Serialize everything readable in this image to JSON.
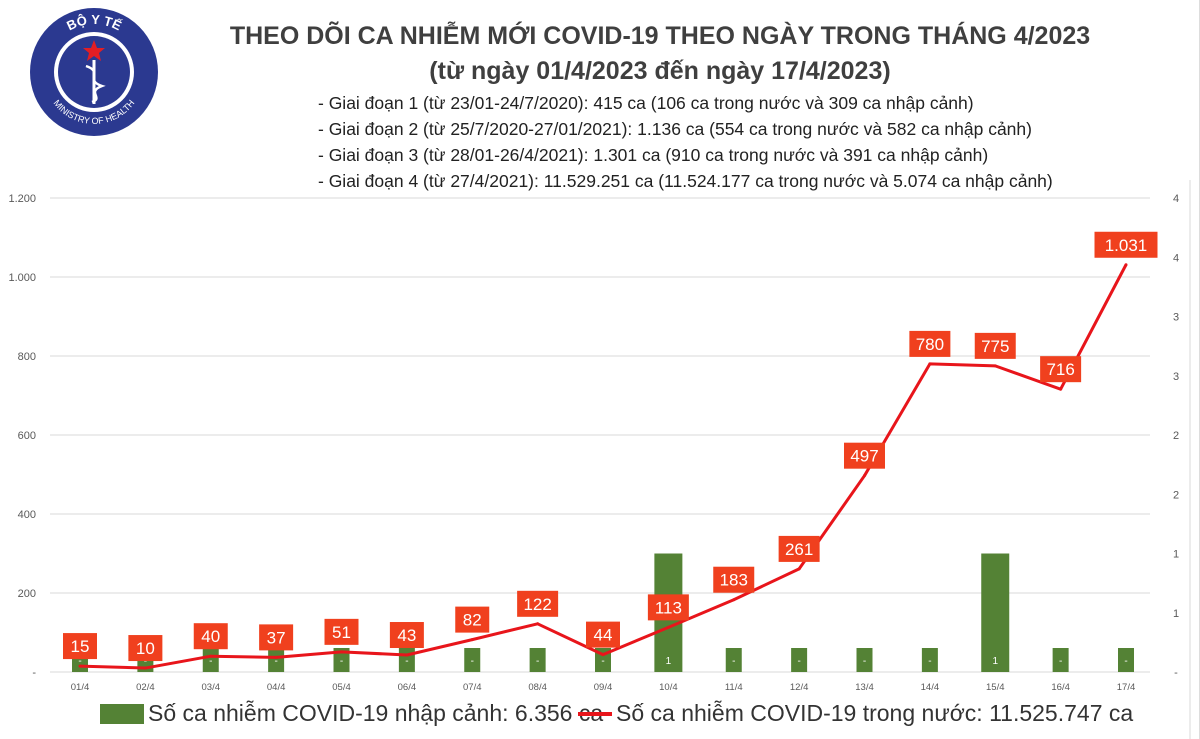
{
  "logo": {
    "top_text": "BỘ Y TẾ",
    "bottom_text": "MINISTRY OF HEALTH",
    "colors": {
      "blue": "#2b3990",
      "star": "#e31e24"
    }
  },
  "title": "THEO DÕI CA NHIỄM MỚI COVID-19 THEO NGÀY TRONG THÁNG 4/2023",
  "subtitle": "(từ ngày 01/4/2023 đến ngày 17/4/2023)",
  "stages": [
    "- Giai đoạn 1 (từ 23/01-24/7/2020): 415 ca (106 ca trong nước và 309 ca nhập cảnh)",
    "- Giai đoạn 2 (từ 25/7/2020-27/01/2021): 1.136 ca (554 ca trong nước và 582 ca nhập cảnh)",
    "- Giai đoạn 3 (từ 28/01-26/4/2021): 1.301 ca (910 ca trong nước và 391 ca nhập cảnh)",
    "- Giai đoạn 4 (từ 27/4/2021): 11.529.251 ca (11.524.177 ca trong nước và 5.074 ca nhập cảnh)"
  ],
  "chart_data": {
    "type": "bar+line",
    "categories": [
      "01/4",
      "02/4",
      "03/4",
      "04/4",
      "05/4",
      "06/4",
      "07/4",
      "08/4",
      "09/4",
      "10/4",
      "11/4",
      "12/4",
      "13/4",
      "14/4",
      "15/4",
      "16/4",
      "17/4"
    ],
    "series": [
      {
        "name": "Số ca nhiễm COVID-19 nhập cảnh: 6.356 ca",
        "type": "bar",
        "axis": "right",
        "color": "#548235",
        "values": [
          0,
          0,
          0,
          0,
          0,
          0,
          0,
          0,
          0,
          1,
          0,
          0,
          0,
          0,
          1,
          0,
          0
        ],
        "labels": [
          "-",
          "-",
          "-",
          "-",
          "-",
          "-",
          "-",
          "-",
          "-",
          "1",
          "-",
          "-",
          "-",
          "-",
          "1",
          "-",
          "-"
        ]
      },
      {
        "name": "Số ca nhiễm COVID-19 trong nước: 11.525.747 ca",
        "type": "line",
        "axis": "left",
        "color": "#e8151b",
        "values": [
          15,
          10,
          40,
          37,
          51,
          43,
          82,
          122,
          44,
          113,
          183,
          261,
          497,
          780,
          775,
          716,
          1031
        ],
        "labels": [
          "15",
          "10",
          "40",
          "37",
          "51",
          "43",
          "82",
          "122",
          "44",
          "113",
          "183",
          "261",
          "497",
          "780",
          "775",
          "716",
          "1.031"
        ]
      }
    ],
    "left_axis": {
      "ylim": [
        0,
        1200
      ],
      "ticks": [
        "-",
        "200",
        "400",
        "600",
        "800",
        "1.000",
        "1.200"
      ]
    },
    "right_axis": {
      "ylim": [
        0,
        4
      ],
      "ticks": [
        "-",
        "1",
        "1",
        "2",
        "2",
        "3",
        "3",
        "4",
        "4"
      ]
    },
    "grid": true,
    "legend": "bottom",
    "label_box_color": "#f0401e"
  }
}
